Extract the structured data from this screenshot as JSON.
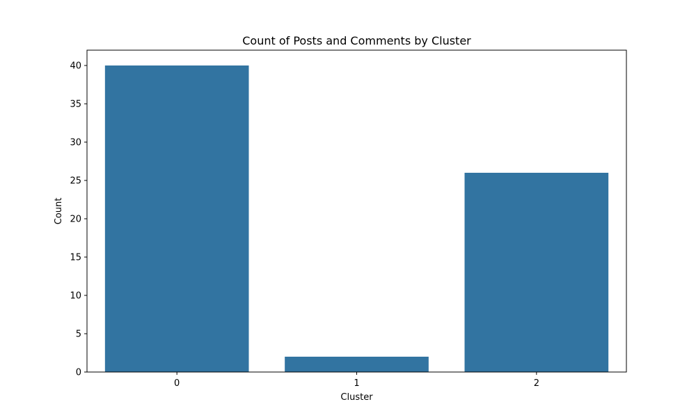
{
  "chart_data": {
    "type": "bar",
    "title": "Count of Posts and Comments by Cluster",
    "xlabel": "Cluster",
    "ylabel": "Count",
    "categories": [
      "0",
      "1",
      "2"
    ],
    "values": [
      40,
      2,
      26
    ],
    "ylim": [
      0,
      42
    ],
    "yticks": [
      0,
      5,
      10,
      15,
      20,
      25,
      30,
      35,
      40
    ],
    "bar_color": "#3274a1",
    "grid": false,
    "legend": "none"
  }
}
